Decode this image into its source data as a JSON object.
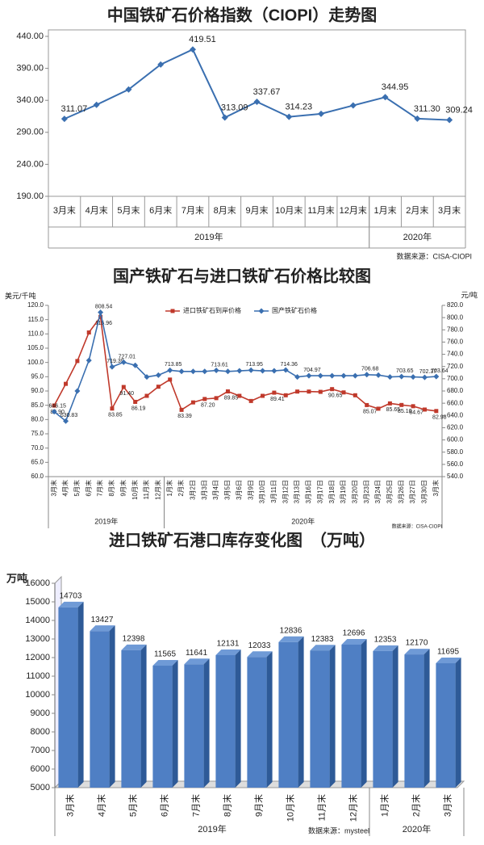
{
  "chart_data": [
    {
      "type": "line",
      "title": "中国铁矿石价格指数（CIOPI）走势图",
      "categories": [
        "3月末",
        "4月末",
        "5月末",
        "6月末",
        "7月末",
        "8月末",
        "9月末",
        "10月末",
        "11月末",
        "12月末",
        "1月末",
        "2月末",
        "3月末"
      ],
      "years": [
        "2019年",
        "2019年",
        "2019年",
        "2019年",
        "2019年",
        "2019年",
        "2019年",
        "2019年",
        "2019年",
        "2019年",
        "2020年",
        "2020年",
        "2020年"
      ],
      "values": [
        311.07,
        333,
        357,
        396,
        419.51,
        313.09,
        337.67,
        314.23,
        319,
        332,
        344.95,
        311.3,
        309.24
      ],
      "value_labels": [
        "311.07",
        null,
        null,
        null,
        "419.51",
        "313.09",
        "337.67",
        "314.23",
        null,
        null,
        "344.95",
        "311.30",
        "309.24"
      ],
      "color": "#3a6fb0",
      "ylim": [
        190,
        440
      ],
      "yticks": [
        {
          "value": 190,
          "label": "190.00"
        },
        {
          "value": 240,
          "label": "240.00"
        },
        {
          "value": 290,
          "label": "290.00"
        },
        {
          "value": 340,
          "label": "340.00"
        },
        {
          "value": 390,
          "label": "390.00"
        },
        {
          "value": 440,
          "label": "440.00"
        }
      ],
      "source": "数据来源：CISA-CIOPI"
    },
    {
      "type": "line",
      "title": "国产铁矿石与进口铁矿石价格比较图",
      "ylabel": "美元/千吨",
      "y2label": "元/吨",
      "categories": [
        "3月末",
        "4月末",
        "5月末",
        "6月末",
        "7月末",
        "8月末",
        "9月末",
        "10月末",
        "11月末",
        "12月末",
        "1月末",
        "2月末",
        "3月2日",
        "3月3日",
        "3月4日",
        "3月5日",
        "3月6日",
        "3月9日",
        "3月10日",
        "3月11日",
        "3月12日",
        "3月13日",
        "3月16日",
        "3月17日",
        "3月18日",
        "3月19日",
        "3月20日",
        "3月23日",
        "3月24日",
        "3月25日",
        "3月26日",
        "3月27日",
        "3月30日",
        "3月末"
      ],
      "years": [
        "2019年",
        "2019年",
        "2019年",
        "2019年",
        "2019年",
        "2019年",
        "2019年",
        "2019年",
        "2019年",
        "2019年",
        "2020年",
        "2020年",
        "2020年",
        "2020年",
        "2020年",
        "2020年",
        "2020年",
        "2020年",
        "2020年",
        "2020年",
        "2020年",
        "2020年",
        "2020年",
        "2020年",
        "2020年",
        "2020年",
        "2020年",
        "2020年",
        "2020年",
        "2020年",
        "2020年",
        "2020年",
        "2020年",
        "2020年"
      ],
      "series": [
        {
          "name": "进口铁矿石到岸价格",
          "color": "#c0392b",
          "marker": "square",
          "values": [
            84.9,
            92.5,
            100.5,
            110.5,
            115.96,
            83.85,
            91.4,
            86.19,
            88.3,
            91.5,
            94.0,
            83.39,
            86.0,
            87.2,
            87.5,
            89.85,
            88.3,
            86.5,
            88.3,
            89.41,
            88.5,
            89.8,
            89.8,
            89.7,
            90.65,
            89.5,
            88.5,
            85.07,
            83.8,
            85.65,
            85.1,
            84.67,
            83.5,
            82.98
          ],
          "value_labels": [
            "84.90",
            null,
            null,
            null,
            "115.96",
            "83.85",
            "91.40",
            "86.19",
            null,
            null,
            null,
            "83.39",
            null,
            "87.20",
            null,
            "89.85",
            null,
            null,
            null,
            "89.41",
            null,
            null,
            null,
            null,
            "90.65",
            null,
            null,
            "85.07",
            null,
            "85.65",
            "85.10",
            "84.67",
            null,
            "82.98"
          ]
        },
        {
          "name": "国产铁矿石价格",
          "color": "#3a6fb0",
          "marker": "diamond",
          "axis": "y2",
          "values": [
            646.15,
            630.83,
            680,
            730,
            808.54,
            719.39,
            727.01,
            722,
            703,
            706,
            713.85,
            712,
            712,
            712,
            713.61,
            712,
            713,
            713.95,
            713,
            713,
            714.36,
            703,
            704.97,
            705,
            705,
            705,
            705,
            706.68,
            706,
            703,
            703.65,
            703,
            702.37,
            703.64
          ],
          "value_labels": [
            "646.15",
            "630.83",
            null,
            null,
            "808.54",
            "719.39",
            "727.01",
            null,
            null,
            null,
            "713.85",
            null,
            null,
            null,
            "713.61",
            null,
            null,
            "713.95",
            null,
            null,
            "714.36",
            null,
            "704.97",
            null,
            null,
            null,
            null,
            "706.68",
            null,
            null,
            "703.65",
            null,
            "702.37",
            "703.64"
          ]
        }
      ],
      "ylim": [
        60,
        120
      ],
      "yticks": [
        {
          "value": 60,
          "label": "60.0"
        },
        {
          "value": 65,
          "label": "65.0"
        },
        {
          "value": 70,
          "label": "70.0"
        },
        {
          "value": 75,
          "label": "75.0"
        },
        {
          "value": 80,
          "label": "80.0"
        },
        {
          "value": 85,
          "label": "85.0"
        },
        {
          "value": 90,
          "label": "90.0"
        },
        {
          "value": 95,
          "label": "95.0"
        },
        {
          "value": 100,
          "label": "100.0"
        },
        {
          "value": 105,
          "label": "105.0"
        },
        {
          "value": 110,
          "label": "110.0"
        },
        {
          "value": 115,
          "label": "115.0"
        },
        {
          "value": 120,
          "label": "120.0"
        }
      ],
      "y2lim": [
        540,
        820
      ],
      "y2ticks": [
        {
          "value": 540,
          "label": "540.0"
        },
        {
          "value": 560,
          "label": "560.0"
        },
        {
          "value": 580,
          "label": "580.0"
        },
        {
          "value": 600,
          "label": "600.0"
        },
        {
          "value": 620,
          "label": "620.0"
        },
        {
          "value": 640,
          "label": "640.0"
        },
        {
          "value": 660,
          "label": "660.0"
        },
        {
          "value": 680,
          "label": "680.0"
        },
        {
          "value": 700,
          "label": "700.0"
        },
        {
          "value": 720,
          "label": "720.0"
        },
        {
          "value": 740,
          "label": "740.0"
        },
        {
          "value": 760,
          "label": "760.0"
        },
        {
          "value": 780,
          "label": "780.0"
        },
        {
          "value": 800,
          "label": "800.0"
        },
        {
          "value": 820,
          "label": "820.0"
        }
      ],
      "legend": "top",
      "source": "数据来源：CISA-CIOPI"
    },
    {
      "type": "bar",
      "title": "进口铁矿石港口库存变化图　（万吨）",
      "ylabel": "万吨",
      "categories": [
        "3月末",
        "4月末",
        "5月末",
        "6月末",
        "7月末",
        "8月末",
        "9月末",
        "10月末",
        "11月末",
        "12月末",
        "1月末",
        "2月末",
        "3月末"
      ],
      "years": [
        "2019年",
        "2019年",
        "2019年",
        "2019年",
        "2019年",
        "2019年",
        "2019年",
        "2019年",
        "2019年",
        "2019年",
        "2020年",
        "2020年",
        "2020年"
      ],
      "values": [
        14703,
        13427,
        12398,
        11565,
        11641,
        12131,
        12033,
        12836,
        12383,
        12696,
        12353,
        12170,
        11695
      ],
      "color": "#4f7fc4",
      "ylim": [
        5000,
        16000
      ],
      "yticks": [
        5000,
        6000,
        7000,
        8000,
        9000,
        10000,
        11000,
        12000,
        13000,
        14000,
        15000,
        16000
      ],
      "source": "数据来源：mysteel"
    }
  ]
}
